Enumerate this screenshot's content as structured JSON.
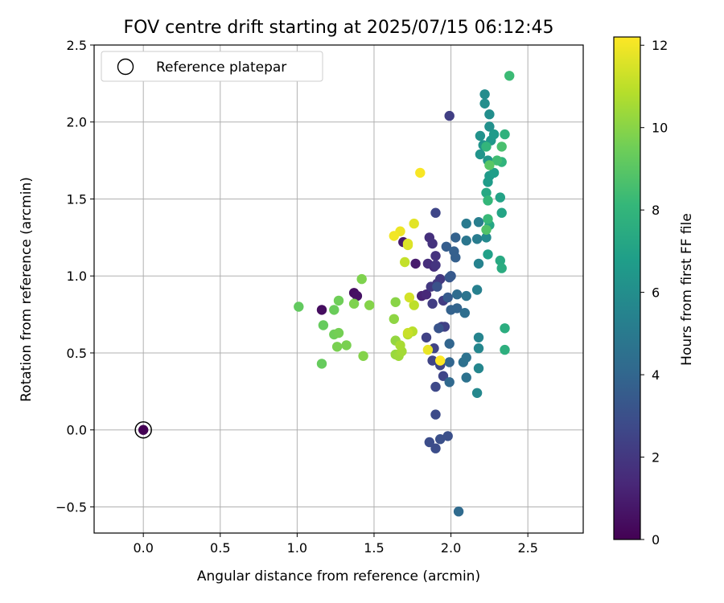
{
  "chart_data": {
    "type": "scatter",
    "title": "FOV centre drift starting at 2025/07/15 06:12:45",
    "xlabel": "Angular distance from reference (arcmin)",
    "ylabel": "Rotation from reference (arcmin)",
    "xlim": [
      -0.32,
      2.86
    ],
    "ylim": [
      -0.67,
      2.5
    ],
    "xticks": [
      0.0,
      0.5,
      1.0,
      1.5,
      2.0,
      2.5
    ],
    "xtick_labels": [
      "0.0",
      "0.5",
      "1.0",
      "1.5",
      "2.0",
      "2.5"
    ],
    "yticks": [
      -0.5,
      0.0,
      0.5,
      1.0,
      1.5,
      2.0,
      2.5
    ],
    "ytick_labels": [
      "−0.5",
      "0.0",
      "0.5",
      "1.0",
      "1.5",
      "2.0",
      "2.5"
    ],
    "grid": true,
    "legend": {
      "position": "top-left",
      "entries": [
        "Reference platepar"
      ]
    },
    "reference_point": {
      "x": 0.0,
      "y": 0.0,
      "hours": 0.0
    },
    "colorbar": {
      "label": "Hours from first FF file",
      "range": [
        0,
        12.2
      ],
      "ticks": [
        0,
        2,
        4,
        6,
        8,
        10,
        12
      ],
      "tick_labels": [
        "0",
        "2",
        "4",
        "6",
        "8",
        "10",
        "12"
      ],
      "colormap": "viridis",
      "stops": [
        "#440154",
        "#482878",
        "#3e4989",
        "#31688e",
        "#26828e",
        "#1f9e89",
        "#35b779",
        "#6ece58",
        "#b5de2b",
        "#fde725"
      ]
    },
    "points": [
      [
        1.16,
        0.78,
        0.4
      ],
      [
        1.37,
        0.89,
        0.5
      ],
      [
        1.39,
        0.87,
        0.6
      ],
      [
        1.69,
        1.22,
        0.8
      ],
      [
        1.77,
        1.08,
        0.9
      ],
      [
        1.81,
        0.87,
        1.2
      ],
      [
        1.84,
        0.88,
        1.4
      ],
      [
        1.85,
        1.08,
        1.6
      ],
      [
        1.89,
        1.06,
        1.6
      ],
      [
        1.86,
        1.25,
        1.7
      ],
      [
        1.88,
        1.21,
        1.8
      ],
      [
        1.9,
        1.13,
        1.8
      ],
      [
        1.9,
        1.07,
        1.9
      ],
      [
        1.87,
        0.93,
        2.0
      ],
      [
        1.93,
        0.98,
        2.0
      ],
      [
        1.91,
        0.95,
        2.1
      ],
      [
        1.88,
        0.82,
        2.2
      ],
      [
        1.95,
        0.84,
        2.2
      ],
      [
        1.94,
        0.67,
        2.3
      ],
      [
        1.96,
        0.67,
        2.4
      ],
      [
        1.84,
        0.6,
        2.4
      ],
      [
        1.89,
        0.53,
        2.5
      ],
      [
        1.88,
        0.45,
        2.5
      ],
      [
        1.93,
        0.42,
        2.6
      ],
      [
        1.95,
        0.35,
        2.6
      ],
      [
        1.9,
        0.28,
        2.7
      ],
      [
        1.9,
        0.1,
        2.8
      ],
      [
        1.86,
        -0.08,
        2.9
      ],
      [
        1.9,
        -0.12,
        2.9
      ],
      [
        1.93,
        -0.06,
        3.0
      ],
      [
        1.98,
        -0.04,
        3.0
      ],
      [
        1.9,
        1.41,
        2.6
      ],
      [
        1.99,
        2.04,
        2.3
      ],
      [
        1.91,
        0.93,
        3.1
      ],
      [
        1.92,
        0.66,
        3.2
      ],
      [
        1.99,
        0.99,
        3.3
      ],
      [
        2.0,
        1.0,
        3.4
      ],
      [
        1.98,
        0.86,
        3.5
      ],
      [
        1.97,
        1.19,
        3.6
      ],
      [
        2.02,
        1.16,
        3.7
      ],
      [
        2.03,
        1.12,
        3.7
      ],
      [
        2.03,
        1.25,
        3.8
      ],
      [
        2.0,
        0.78,
        3.8
      ],
      [
        2.04,
        0.79,
        3.9
      ],
      [
        1.99,
        0.56,
        4.0
      ],
      [
        1.99,
        0.44,
        4.0
      ],
      [
        1.99,
        0.31,
        4.1
      ],
      [
        2.05,
        -0.53,
        4.2
      ],
      [
        2.04,
        0.88,
        4.3
      ],
      [
        2.09,
        0.76,
        4.4
      ],
      [
        2.08,
        0.44,
        4.5
      ],
      [
        2.1,
        0.47,
        4.6
      ],
      [
        2.1,
        0.34,
        4.6
      ],
      [
        2.1,
        0.87,
        4.7
      ],
      [
        2.1,
        1.23,
        4.8
      ],
      [
        2.1,
        1.34,
        5.0
      ],
      [
        2.17,
        1.24,
        5.1
      ],
      [
        2.18,
        1.35,
        5.2
      ],
      [
        2.17,
        0.91,
        5.3
      ],
      [
        2.18,
        1.08,
        5.4
      ],
      [
        2.18,
        0.6,
        5.5
      ],
      [
        2.18,
        0.53,
        5.6
      ],
      [
        2.18,
        0.4,
        5.6
      ],
      [
        2.17,
        0.24,
        5.7
      ],
      [
        2.23,
        1.25,
        5.8
      ],
      [
        2.22,
        2.18,
        5.9
      ],
      [
        2.22,
        2.12,
        6.0
      ],
      [
        2.25,
        2.05,
        6.0
      ],
      [
        2.25,
        1.97,
        6.1
      ],
      [
        2.19,
        1.91,
        6.2
      ],
      [
        2.21,
        1.85,
        6.3
      ],
      [
        2.19,
        1.79,
        6.3
      ],
      [
        2.24,
        1.75,
        6.4
      ],
      [
        2.26,
        1.88,
        6.5
      ],
      [
        2.28,
        1.92,
        6.6
      ],
      [
        2.25,
        1.65,
        6.6
      ],
      [
        2.24,
        1.61,
        6.7
      ],
      [
        2.28,
        1.67,
        6.8
      ],
      [
        2.24,
        1.14,
        6.9
      ],
      [
        2.32,
        1.51,
        7.0
      ],
      [
        2.33,
        1.41,
        7.1
      ],
      [
        2.25,
        1.33,
        7.2
      ],
      [
        2.23,
        1.54,
        7.3
      ],
      [
        2.32,
        1.1,
        7.4
      ],
      [
        2.33,
        1.05,
        7.5
      ],
      [
        2.35,
        0.66,
        7.6
      ],
      [
        2.35,
        0.52,
        7.7
      ],
      [
        2.35,
        1.92,
        7.8
      ],
      [
        2.33,
        1.74,
        7.9
      ],
      [
        2.23,
        1.84,
        8.0
      ],
      [
        2.24,
        1.49,
        8.1
      ],
      [
        2.24,
        1.37,
        8.2
      ],
      [
        2.38,
        2.3,
        8.3
      ],
      [
        2.3,
        1.75,
        8.4
      ],
      [
        2.33,
        1.84,
        8.6
      ],
      [
        2.23,
        1.3,
        8.8
      ],
      [
        2.25,
        1.72,
        9.0
      ],
      [
        1.01,
        0.8,
        9.2
      ],
      [
        1.17,
        0.68,
        9.3
      ],
      [
        1.16,
        0.43,
        9.3
      ],
      [
        1.24,
        0.78,
        9.4
      ],
      [
        1.27,
        0.84,
        9.5
      ],
      [
        1.24,
        0.62,
        9.5
      ],
      [
        1.27,
        0.63,
        9.6
      ],
      [
        1.26,
        0.54,
        9.7
      ],
      [
        1.32,
        0.55,
        9.7
      ],
      [
        1.37,
        0.82,
        9.8
      ],
      [
        1.42,
        0.98,
        9.8
      ],
      [
        1.43,
        0.48,
        9.9
      ],
      [
        1.47,
        0.81,
        9.9
      ],
      [
        1.64,
        0.83,
        10.0
      ],
      [
        1.63,
        0.72,
        10.1
      ],
      [
        1.64,
        0.58,
        10.2
      ],
      [
        1.64,
        0.49,
        10.3
      ],
      [
        1.66,
        0.48,
        10.4
      ],
      [
        1.68,
        0.51,
        10.5
      ],
      [
        1.67,
        0.55,
        10.6
      ],
      [
        1.72,
        0.62,
        10.8
      ],
      [
        1.75,
        0.64,
        10.9
      ],
      [
        1.76,
        0.81,
        11.0
      ],
      [
        1.7,
        1.09,
        11.1
      ],
      [
        1.72,
        0.63,
        11.2
      ],
      [
        1.73,
        0.86,
        11.4
      ],
      [
        1.72,
        1.2,
        11.5
      ],
      [
        1.72,
        1.21,
        11.6
      ],
      [
        1.76,
        1.34,
        11.7
      ],
      [
        1.85,
        0.52,
        11.8
      ],
      [
        1.67,
        1.29,
        11.9
      ],
      [
        1.63,
        1.26,
        12.0
      ],
      [
        1.8,
        1.67,
        12.1
      ],
      [
        1.93,
        0.45,
        12.2
      ]
    ]
  }
}
